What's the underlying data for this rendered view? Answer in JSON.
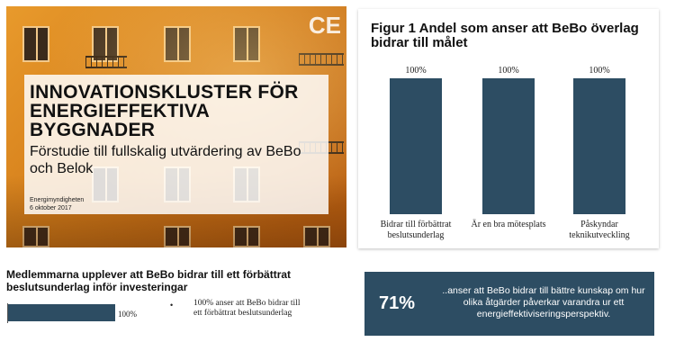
{
  "cover": {
    "brand": "CE",
    "title": "INNOVATIONSKLUSTER FÖR ENERGIEFFEKTIVA BYGGNADER",
    "subtitle": "Förstudie till fullskalig utvärdering av BeBo och Belok",
    "org": "Energimyndigheten",
    "date": "6 oktober 2017"
  },
  "chart_data": {
    "type": "bar",
    "title": "Figur 1 Andel som anser att BeBo överlag bidrar till målet",
    "categories": [
      [
        "Bidrar till förbättrat",
        "beslutsunderlag"
      ],
      [
        "Är en bra mötesplats"
      ],
      [
        "Påskyndar",
        "teknikutveckling"
      ]
    ],
    "values": [
      100,
      100,
      100
    ],
    "value_labels": [
      "100%",
      "100%",
      "100%"
    ],
    "ylim": [
      0,
      100
    ],
    "bar_color": "#2d4d63",
    "grid": false
  },
  "statement": {
    "title": "Medlemmarna upplever att BeBo bidrar till ett förbättrat beslutsunderlag inför investeringar",
    "value_label": "100%",
    "bullet_text": "100% anser att BeBo bidrar till ett förbättrat beslutsunderlag"
  },
  "stat": {
    "number": "71%",
    "text": "..anser att BeBo bidrar till bättre kunskap om hur olika åtgärder påverkar varandra ur ett energieffektiviseringsperspektiv."
  }
}
